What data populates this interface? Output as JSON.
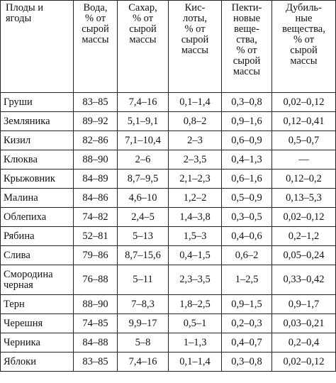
{
  "headers": [
    [
      "Плоды и",
      "ягоды"
    ],
    [
      "Вода,",
      "% от",
      "сырой",
      "массы"
    ],
    [
      "Сахар,",
      "% от",
      "сырой",
      "массы"
    ],
    [
      "Кис-",
      "лоты,",
      "% от",
      "сырой",
      "массы"
    ],
    [
      "Пекти-",
      "новые",
      "веще-",
      "ства,",
      "% от",
      "сырой",
      "массы"
    ],
    [
      "Дубиль-",
      "ные",
      "вещества,",
      "% от",
      "сырой",
      "массы"
    ]
  ],
  "rows": [
    {
      "name": [
        "Груши"
      ],
      "cells": [
        "83–85",
        "7,4–16",
        "0,1–1,4",
        "0,3–0,8",
        "0,02–0,12"
      ]
    },
    {
      "name": [
        "Земляника"
      ],
      "cells": [
        "89–92",
        "5,1–9,1",
        "0,8–2",
        "0,9–1,6",
        "0,12–0,41"
      ]
    },
    {
      "name": [
        "Кизил"
      ],
      "cells": [
        "82–86",
        "7,1–10,4",
        "2–3",
        "0,6–0,9",
        "0,5–0,7"
      ]
    },
    {
      "name": [
        "Клюква"
      ],
      "cells": [
        "88–90",
        "2–6",
        "2–3,5",
        "0,4–1,3",
        "—"
      ]
    },
    {
      "name": [
        "Крыжовник"
      ],
      "cells": [
        "84–89",
        "8,7–9,5",
        "2,1–2,3",
        "0,6–1,6",
        "0,12–0,2"
      ]
    },
    {
      "name": [
        "Малина"
      ],
      "cells": [
        "84–86",
        "4,6–10",
        "1,2–2",
        "0,5–0,9",
        "0,13–5,3"
      ]
    },
    {
      "name": [
        "Облепиха"
      ],
      "cells": [
        "74–82",
        "2,4–5",
        "1,4–3,8",
        "0,3–0,5",
        "0,02–0,12"
      ]
    },
    {
      "name": [
        "Рябина"
      ],
      "cells": [
        "52–81",
        "5–13",
        "1,5–3",
        "0,4–0,6",
        "0,2–1,2"
      ]
    },
    {
      "name": [
        "Слива"
      ],
      "cells": [
        "79–86",
        "8,7–15,6",
        "0,4–1,5",
        "0,6–2",
        "0,05–0,24"
      ]
    },
    {
      "name": [
        "Смородина",
        "черная"
      ],
      "cells": [
        "76–88",
        "5–11",
        "2,3–3,5",
        "1–2,5",
        "0,33–0,42"
      ]
    },
    {
      "name": [
        "Терн"
      ],
      "cells": [
        "88–90",
        "7–8,3",
        "1,8–2,5",
        "0,9–1,5",
        "0,9–1,7"
      ]
    },
    {
      "name": [
        "Черешня"
      ],
      "cells": [
        "74–85",
        "9,9–17",
        "0,5–1",
        "0,2–0,3",
        "0,03–0,21"
      ]
    },
    {
      "name": [
        "Черника"
      ],
      "cells": [
        "84–88",
        "5–8",
        "1–1,3",
        "0,4–0,7",
        "0,2–0,4"
      ]
    },
    {
      "name": [
        "Яблоки"
      ],
      "cells": [
        "83–85",
        "7,4–16",
        "0,1–1,4",
        "0,3–0,8",
        "0,02–0,12"
      ]
    }
  ]
}
